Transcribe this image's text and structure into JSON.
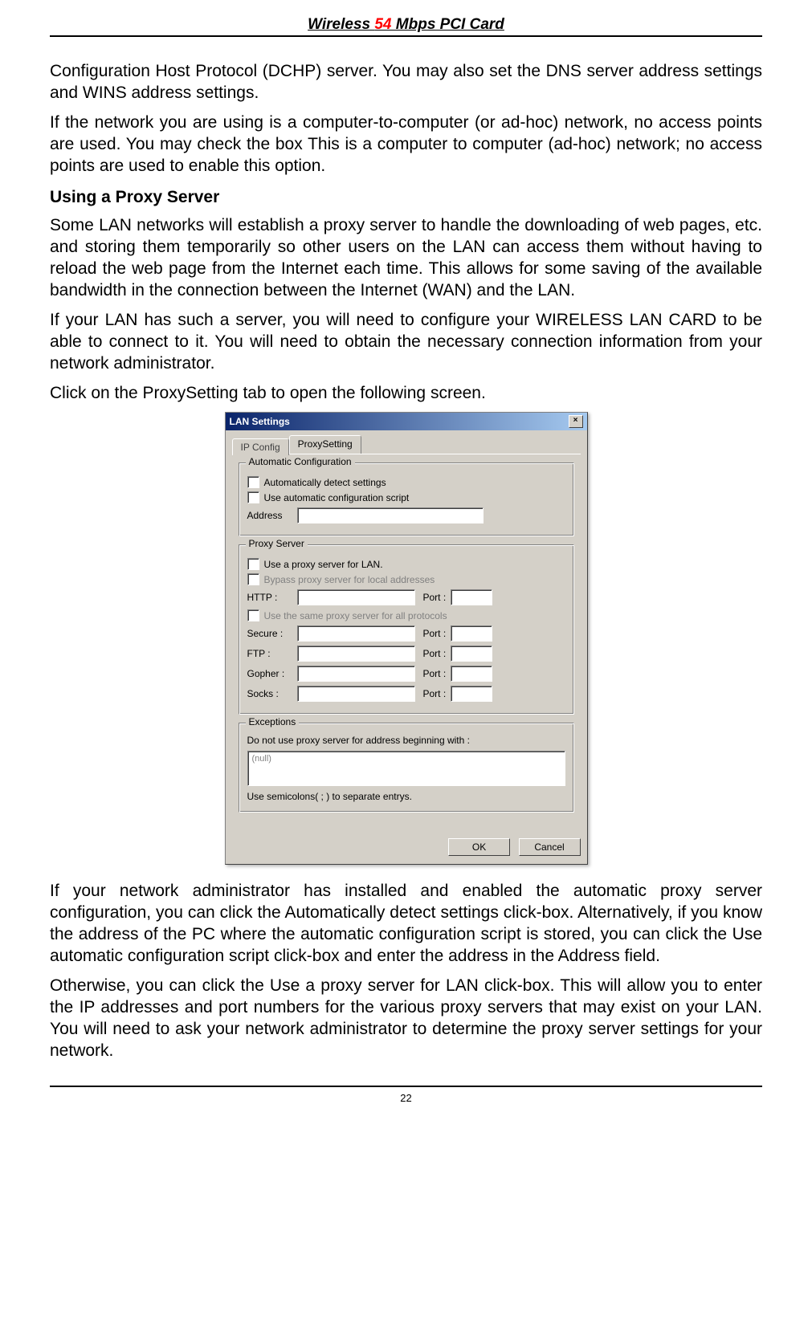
{
  "header": {
    "prefix": "Wireless ",
    "highlight": "54",
    "suffix": " Mbps PCI Card"
  },
  "paragraphs": {
    "p1": "Configuration Host Protocol (DCHP) server. You may also set the DNS server address settings and WINS address settings.",
    "p2": "If the network you are using is a computer-to-computer (or ad-hoc) network, no access points are used. You may check the box This is a computer to computer (ad-hoc) network; no access points are used to enable this option.",
    "h1": "Using a Proxy Server",
    "p3": "Some LAN networks will establish a proxy server to handle the downloading of web pages, etc. and storing them temporarily so other users on the LAN can access them without having to reload the web page from the Internet each time.  This allows for some saving of the available bandwidth in the connection between the Internet (WAN) and the LAN.",
    "p4": "If your LAN has such a server, you will need to configure your WIRELESS LAN CARD to be able to connect to it.  You will need to obtain the necessary connection information from your network administrator.",
    "p5": "Click on the ProxySetting tab to open the following screen.",
    "p6": "If your network administrator has installed and enabled the automatic proxy server configuration, you can click the Automatically detect settings click-box.  Alternatively, if you know the address of the PC where the automatic configuration script is stored, you can click the Use automatic configuration script click-box and enter the address in the Address field.",
    "p7": "Otherwise, you can click the Use a proxy server for LAN click-box.  This will allow you to enter the IP addresses and port numbers for the various proxy servers that may exist on your LAN.  You will need to ask your network administrator to determine the proxy server settings for your network."
  },
  "dialog": {
    "title": "LAN Settings",
    "tabs": {
      "ip": "IP Config",
      "proxy": "ProxySetting"
    },
    "group_auto": "Automatic Configuration",
    "chk_auto_detect": "Automatically detect settings",
    "chk_auto_script": "Use automatic configuration script",
    "lbl_address": "Address",
    "group_proxy": "Proxy Server",
    "chk_use_proxy": "Use a proxy server for LAN.",
    "chk_bypass": "Bypass proxy server for local addresses",
    "chk_same": "Use the same proxy server for all protocols",
    "lbl_http": "HTTP :",
    "lbl_secure": "Secure :",
    "lbl_ftp": "FTP :",
    "lbl_gopher": "Gopher :",
    "lbl_socks": "Socks :",
    "lbl_port": "Port :",
    "group_exceptions": "Exceptions",
    "exc_label": "Do not use proxy server for address beginning with :",
    "exc_placeholder": "(null)",
    "exc_hint": "Use semicolons( ; ) to separate entrys.",
    "btn_ok": "OK",
    "btn_cancel": "Cancel"
  },
  "footer": {
    "page": "22"
  }
}
